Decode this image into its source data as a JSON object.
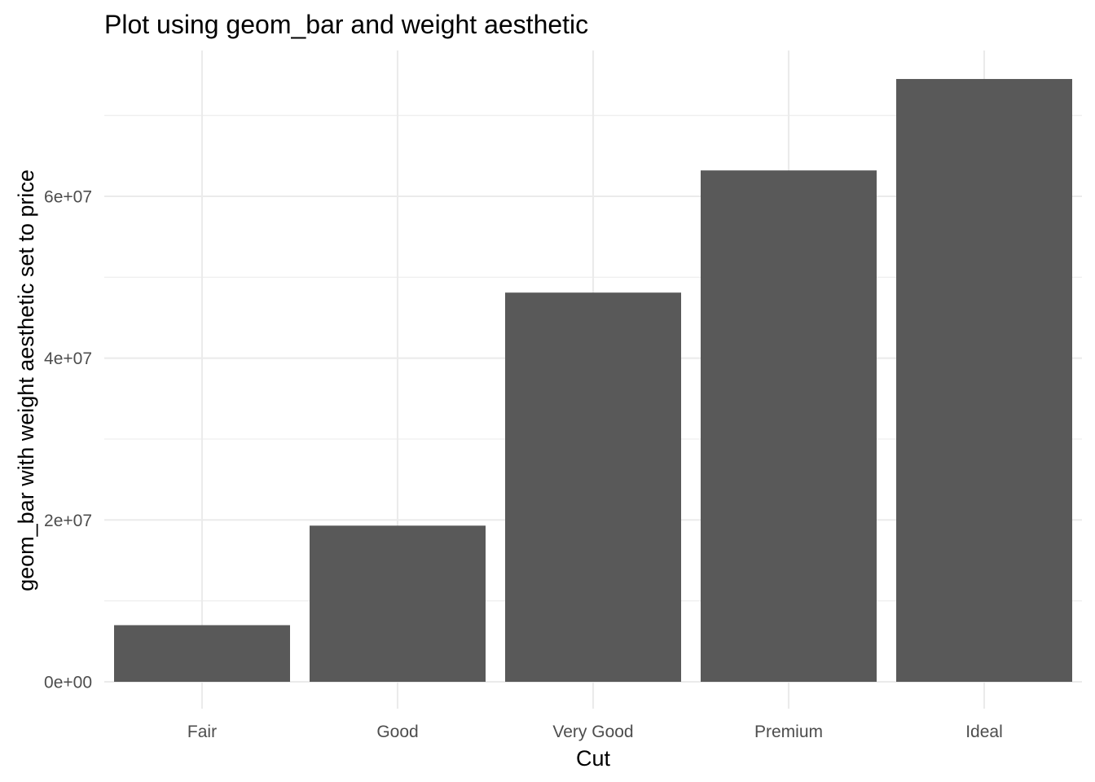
{
  "chart_data": {
    "type": "bar",
    "title": "Plot using geom_bar and weight aesthetic",
    "xlabel": "Cut",
    "ylabel": "geom_bar with weight aesthetic set to price",
    "categories": [
      "Fair",
      "Good",
      "Very Good",
      "Premium",
      "Ideal"
    ],
    "values": [
      7000000,
      19300000,
      48100000,
      63200000,
      74500000
    ],
    "ylim": [
      0,
      78000000
    ],
    "y_ticks": [
      0,
      20000000,
      40000000,
      60000000
    ],
    "y_tick_labels": [
      "0e+00",
      "2e+07",
      "4e+07",
      "6e+07"
    ],
    "y_minor_ticks": [
      10000000,
      30000000,
      50000000,
      70000000
    ],
    "grid": true,
    "legend": "none",
    "bar_color": "#595959",
    "grid_color": "#ebebeb",
    "background": "#ffffff"
  }
}
